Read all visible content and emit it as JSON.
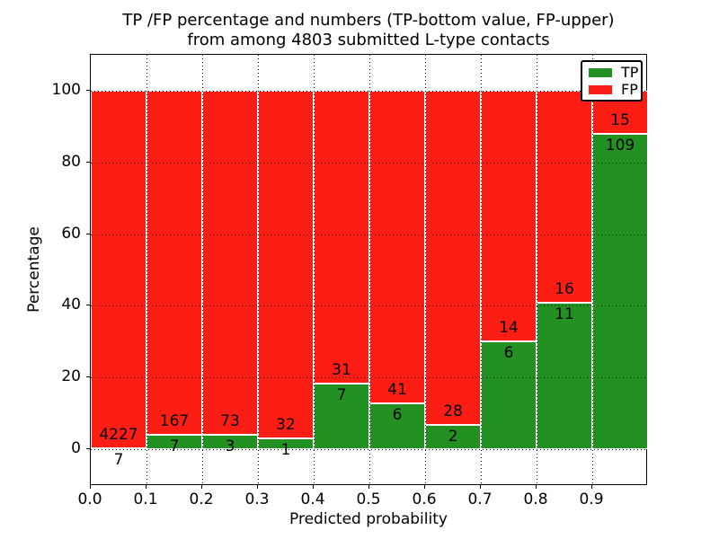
{
  "chart_data": {
    "type": "bar",
    "stacked": true,
    "title_line1": "TP /FP percentage and numbers (TP-bottom value, FP-upper)",
    "title_line2": "from among 4803 submitted L-type contacts",
    "total_submitted": 4803,
    "xlabel": "Predicted probability",
    "ylabel": "Percentage",
    "x_ticks": [
      "0.0",
      "0.1",
      "0.2",
      "0.3",
      "0.4",
      "0.5",
      "0.6",
      "0.7",
      "0.8",
      "0.9"
    ],
    "y_ticks": [
      0,
      20,
      40,
      60,
      80,
      100
    ],
    "xlim": [
      0.0,
      1.0
    ],
    "ylim": [
      -10.3,
      110.0
    ],
    "bin_width": 0.1,
    "grid": true,
    "grid_style": "dotted",
    "bins": [
      {
        "range": "0.0-0.1",
        "tp": 7,
        "fp": 4227,
        "tp_pct": 0.17
      },
      {
        "range": "0.1-0.2",
        "tp": 7,
        "fp": 167,
        "tp_pct": 4.02
      },
      {
        "range": "0.2-0.3",
        "tp": 3,
        "fp": 73,
        "tp_pct": 3.95
      },
      {
        "range": "0.3-0.4",
        "tp": 1,
        "fp": 32,
        "tp_pct": 3.03
      },
      {
        "range": "0.4-0.5",
        "tp": 7,
        "fp": 31,
        "tp_pct": 18.42
      },
      {
        "range": "0.5-0.6",
        "tp": 6,
        "fp": 41,
        "tp_pct": 12.77
      },
      {
        "range": "0.6-0.7",
        "tp": 2,
        "fp": 28,
        "tp_pct": 6.67
      },
      {
        "range": "0.7-0.8",
        "tp": 6,
        "fp": 14,
        "tp_pct": 30.0
      },
      {
        "range": "0.8-0.9",
        "tp": 11,
        "fp": 16,
        "tp_pct": 40.74
      },
      {
        "range": "0.9-1.0",
        "tp": 109,
        "fp": 15,
        "tp_pct": 87.9
      }
    ],
    "series": [
      {
        "name": "TP",
        "color": "#229122",
        "counts": [
          7,
          7,
          3,
          1,
          7,
          6,
          2,
          6,
          11,
          109
        ],
        "percentages": [
          0.17,
          4.02,
          3.95,
          3.03,
          18.42,
          12.77,
          6.67,
          30.0,
          40.74,
          87.9
        ]
      },
      {
        "name": "FP",
        "color": "#fc1e14",
        "counts": [
          4227,
          167,
          73,
          32,
          31,
          41,
          28,
          14,
          16,
          15
        ],
        "percentages": [
          99.83,
          95.98,
          96.05,
          96.97,
          81.58,
          87.23,
          93.33,
          70.0,
          59.26,
          12.1
        ]
      }
    ],
    "legend": {
      "position": "upper right",
      "entries": [
        {
          "label": "TP",
          "color": "#229122"
        },
        {
          "label": "FP",
          "color": "#fc1e14"
        }
      ]
    },
    "colors": {
      "tp_green": "#229122",
      "fp_red": "#fc1e14",
      "frame": "#000000",
      "background": "#ffffff",
      "text": "#000000"
    }
  }
}
